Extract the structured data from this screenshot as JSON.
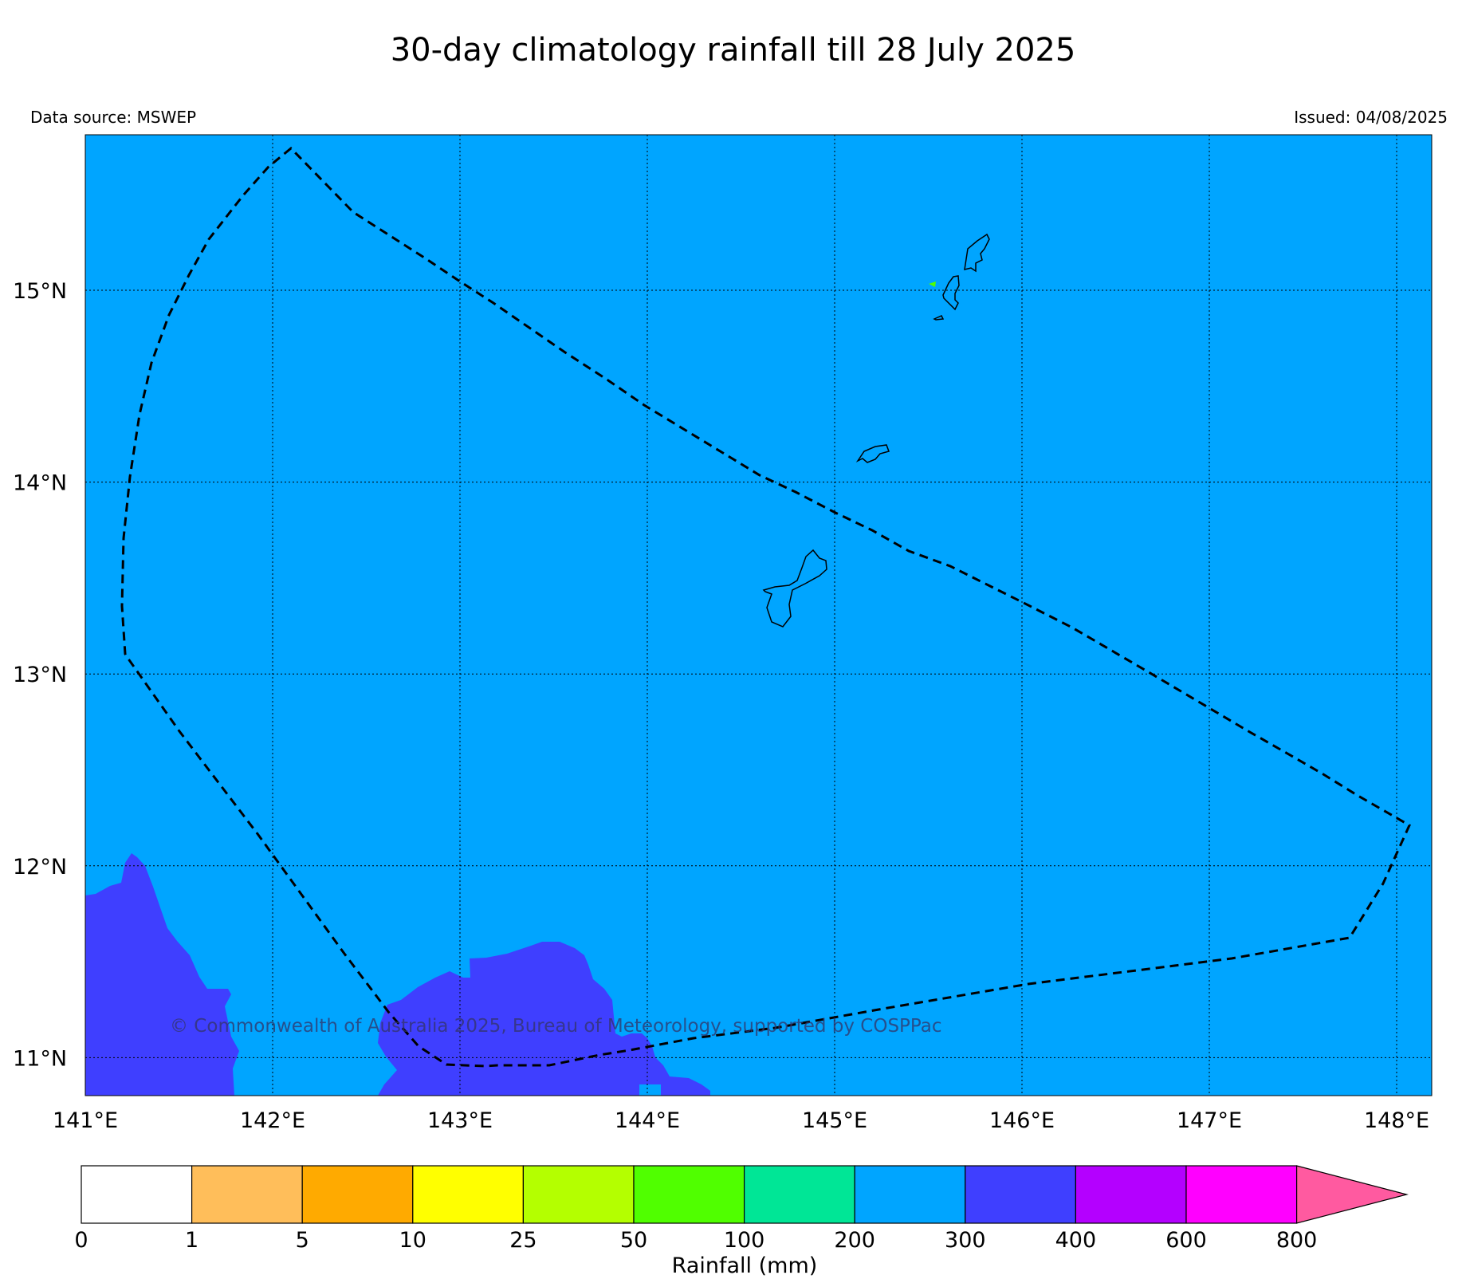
{
  "title": "30-day climatology rainfall till 28 July 2025",
  "data_source": "Data source: MSWEP",
  "issued": "Issued: 04/08/2025",
  "copyright": "© Commonwealth of Australia 2025, Bureau of Meteorology, supported by COSPPac",
  "map": {
    "background_color": "#00A5FF",
    "high_rain_color": "#3F3FFF",
    "lat_labels": [
      "15°N",
      "14°N",
      "13°N",
      "12°N",
      "11°N"
    ],
    "lon_labels": [
      "141°E",
      "142°E",
      "143°E",
      "144°E",
      "145°E",
      "146°E",
      "147°E",
      "148°E"
    ],
    "regions": [
      "Guam",
      "Rota",
      "Tinian",
      "Saipan",
      "Exclusive Economic Zone boundary"
    ]
  },
  "colorbar": {
    "title": "Rainfall (mm)",
    "ticks": [
      "0",
      "1",
      "5",
      "10",
      "25",
      "50",
      "100",
      "200",
      "300",
      "400",
      "600",
      "800"
    ],
    "colors": [
      "#FFFFFF",
      "#FFBE5A",
      "#FFAA00",
      "#FFFF00",
      "#B4FF00",
      "#50FF00",
      "#00E696",
      "#00A5FF",
      "#3F3FFF",
      "#B400FF",
      "#FF00FF",
      "#FF5AA0"
    ]
  }
}
